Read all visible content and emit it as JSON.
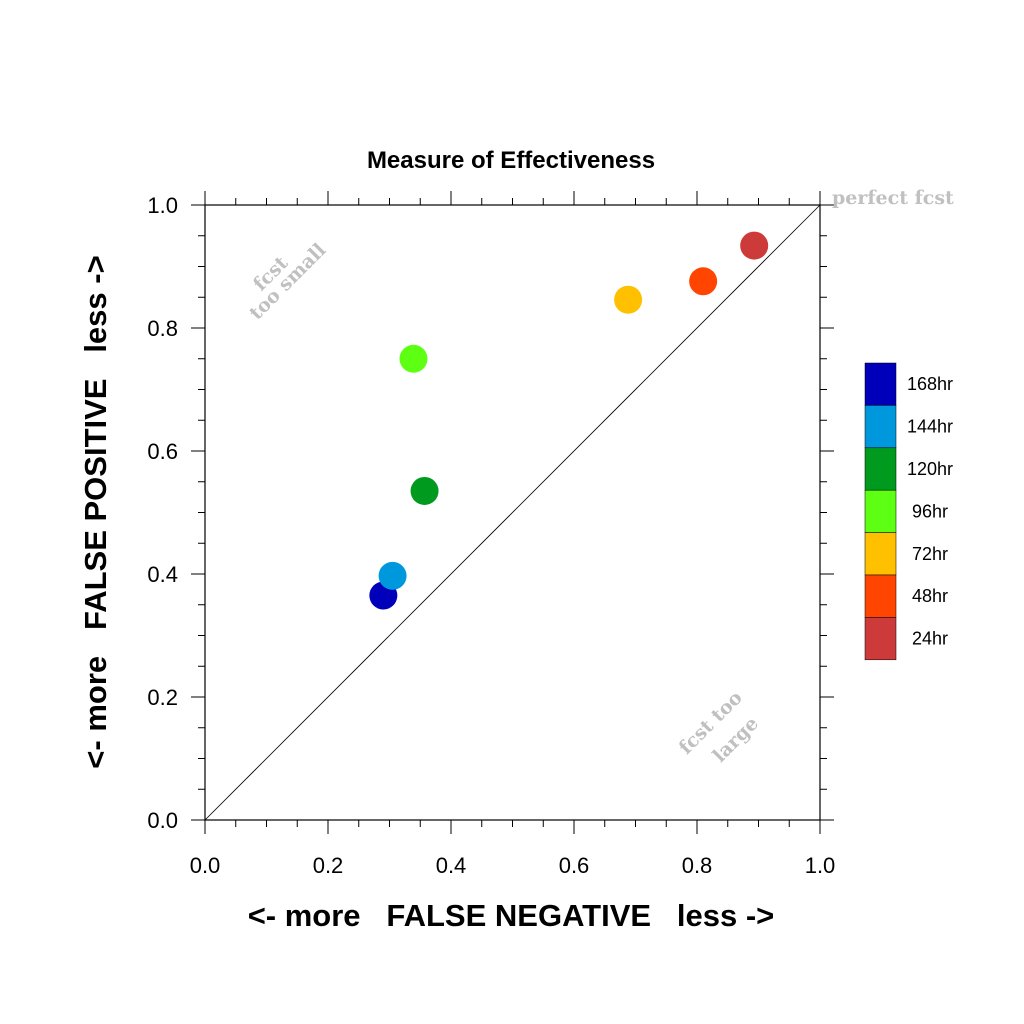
{
  "chart_data": {
    "type": "scatter",
    "title": "Measure of Effectiveness",
    "xlabel": "<- more   FALSE NEGATIVE   less ->",
    "ylabel": "<- more   FALSE POSITIVE   less ->",
    "xlim": [
      0.0,
      1.0
    ],
    "ylim": [
      0.0,
      1.0
    ],
    "x_ticks": [
      "0.0",
      "0.2",
      "0.4",
      "0.6",
      "0.8",
      "1.0"
    ],
    "y_ticks": [
      "0.0",
      "0.2",
      "0.4",
      "0.6",
      "0.8",
      "1.0"
    ],
    "grid": false,
    "diagonal_line": true,
    "legend_position": "right",
    "annotations": {
      "perfect": "perfect fcst",
      "small_line1": "fcst",
      "small_line2": "too small",
      "large_line1": "fcst too",
      "large_line2": "large"
    },
    "series": [
      {
        "name": "168hr",
        "color": "#0000bb",
        "x": 0.29,
        "y": 0.365
      },
      {
        "name": "144hr",
        "color": "#0098dd",
        "x": 0.305,
        "y": 0.397
      },
      {
        "name": "120hr",
        "color": "#009a1f",
        "x": 0.357,
        "y": 0.535
      },
      {
        "name": "96hr",
        "color": "#5dff12",
        "x": 0.339,
        "y": 0.75
      },
      {
        "name": "72hr",
        "color": "#ffc000",
        "x": 0.688,
        "y": 0.846
      },
      {
        "name": "48hr",
        "color": "#ff4500",
        "x": 0.81,
        "y": 0.876
      },
      {
        "name": "24hr",
        "color": "#cc3a3a",
        "x": 0.893,
        "y": 0.934
      }
    ]
  }
}
